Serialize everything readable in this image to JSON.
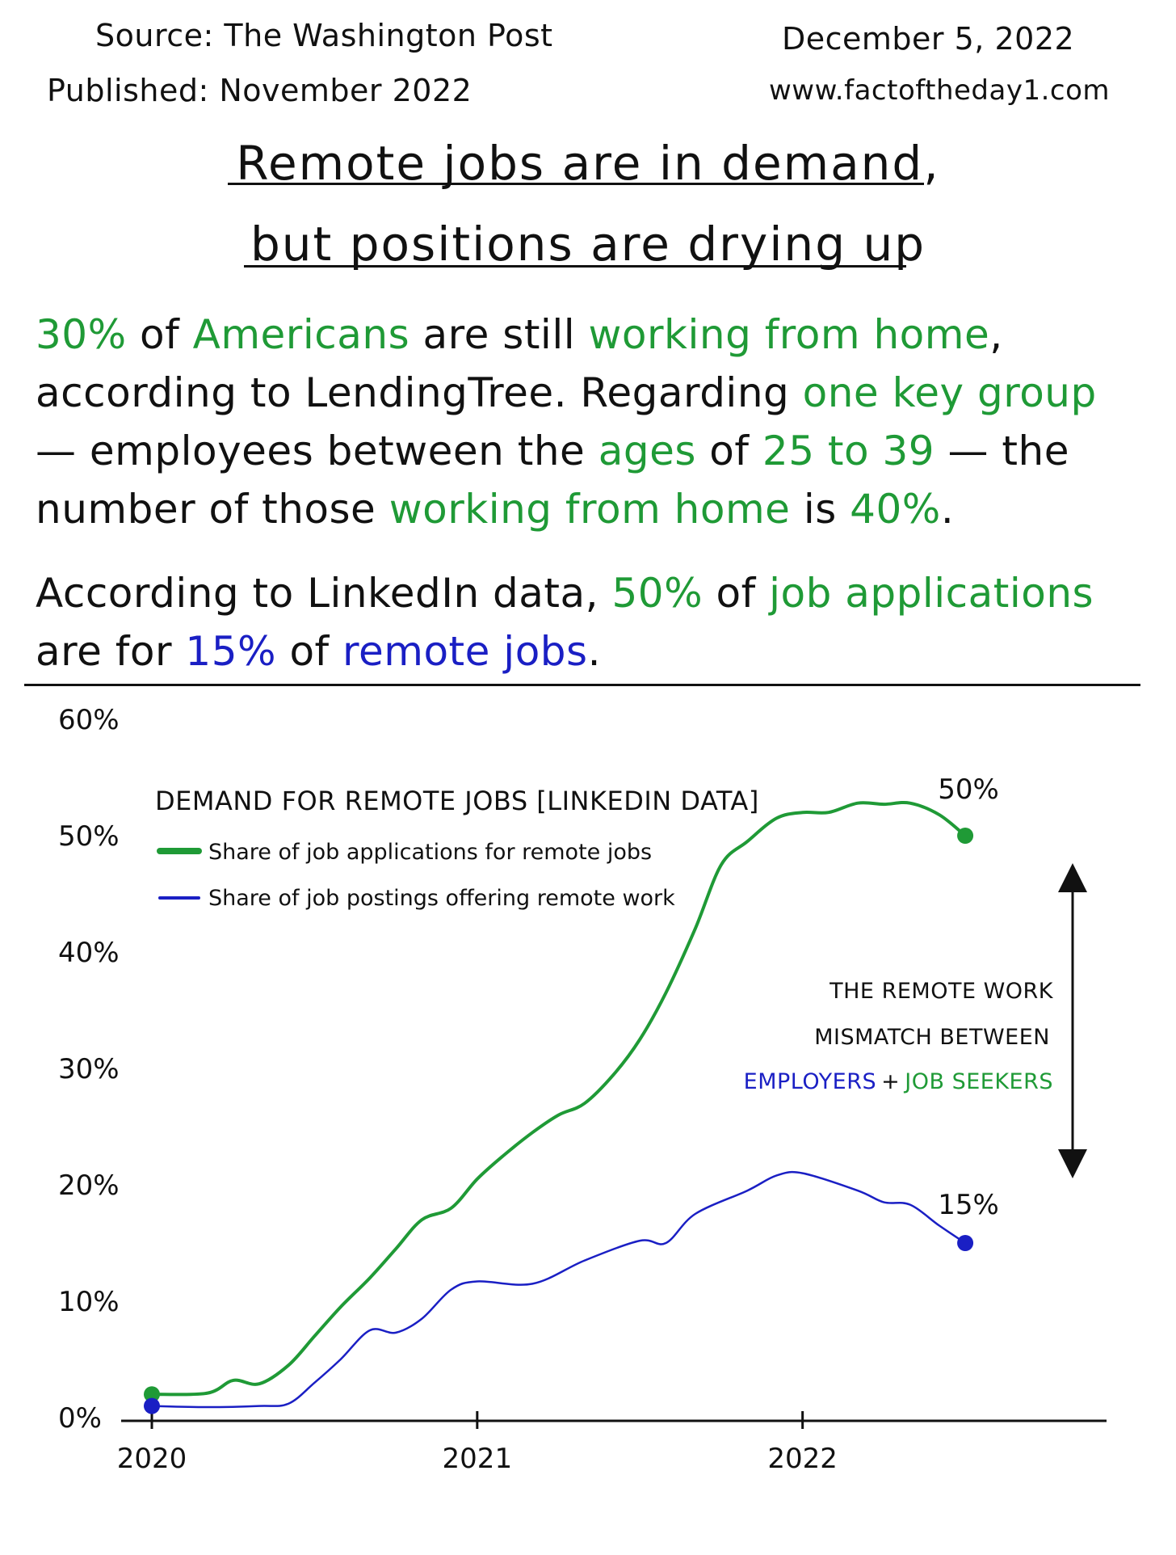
{
  "header": {
    "source": "Source: The Washington Post",
    "published": "Published: November 2022",
    "date": "December 5, 2022",
    "website": "www.factoftheday1.com"
  },
  "title": {
    "line1": "Remote jobs are in demand,",
    "line2": "but positions are drying up"
  },
  "paragraph1": [
    {
      "text": "30%",
      "color": "green"
    },
    {
      "text": " of ",
      "color": "black"
    },
    {
      "text": "Americans",
      "color": "green"
    },
    {
      "text": " are still ",
      "color": "black"
    },
    {
      "text": "working from home",
      "color": "green"
    },
    {
      "text": ", according to LendingTree. Regarding ",
      "color": "black"
    },
    {
      "text": "one key group",
      "color": "green"
    },
    {
      "text": " — employees between the ",
      "color": "black"
    },
    {
      "text": "ages",
      "color": "green"
    },
    {
      "text": " of ",
      "color": "black"
    },
    {
      "text": "25 to 39",
      "color": "green"
    },
    {
      "text": " — the number of those ",
      "color": "black"
    },
    {
      "text": "working from home",
      "color": "green"
    },
    {
      "text": " is ",
      "color": "black"
    },
    {
      "text": "40%",
      "color": "green"
    },
    {
      "text": ".",
      "color": "black"
    }
  ],
  "paragraph2": [
    {
      "text": "According to LinkedIn data, ",
      "color": "black"
    },
    {
      "text": "50%",
      "color": "green"
    },
    {
      "text": " of ",
      "color": "black"
    },
    {
      "text": "job applications",
      "color": "green"
    },
    {
      "text": " are for ",
      "color": "black"
    },
    {
      "text": "15%",
      "color": "blue"
    },
    {
      "text": " of ",
      "color": "black"
    },
    {
      "text": "remote jobs",
      "color": "blue"
    },
    {
      "text": ".",
      "color": "black"
    }
  ],
  "colors": {
    "green": "#1f9a36",
    "blue": "#1a1fc4",
    "black": "#111111"
  },
  "chart_data": {
    "type": "line",
    "title": "DEMAND FOR REMOTE JOBS [LINKEDIN DATA]",
    "xlabel": "",
    "ylabel": "",
    "x_ticks": [
      "2020",
      "2021",
      "2022"
    ],
    "y_ticks": [
      "0%",
      "10%",
      "20%",
      "30%",
      "40%",
      "50%",
      "60%"
    ],
    "ylim": [
      0,
      60
    ],
    "xlim": [
      2020.0,
      2022.83
    ],
    "legend_position": "top-left",
    "grid": false,
    "series": [
      {
        "name": "Share of job applications for remote jobs",
        "color": "#1f9a36",
        "points": [
          [
            2020.0,
            2.0
          ],
          [
            2020.17,
            2.1
          ],
          [
            2020.25,
            3.2
          ],
          [
            2020.33,
            2.9
          ],
          [
            2020.42,
            4.5
          ],
          [
            2020.5,
            7.0
          ],
          [
            2020.58,
            9.5
          ],
          [
            2020.67,
            12.0
          ],
          [
            2020.75,
            14.5
          ],
          [
            2020.83,
            17.0
          ],
          [
            2020.92,
            18.0
          ],
          [
            2021.0,
            20.5
          ],
          [
            2021.08,
            22.5
          ],
          [
            2021.17,
            24.5
          ],
          [
            2021.25,
            26.0
          ],
          [
            2021.33,
            27.0
          ],
          [
            2021.42,
            29.5
          ],
          [
            2021.5,
            32.5
          ],
          [
            2021.58,
            36.5
          ],
          [
            2021.67,
            42.0
          ],
          [
            2021.75,
            47.5
          ],
          [
            2021.83,
            49.5
          ],
          [
            2021.92,
            51.5
          ],
          [
            2022.0,
            52.0
          ],
          [
            2022.08,
            52.0
          ],
          [
            2022.17,
            52.8
          ],
          [
            2022.25,
            52.7
          ],
          [
            2022.33,
            52.8
          ],
          [
            2022.42,
            51.8
          ],
          [
            2022.5,
            50.0
          ]
        ],
        "end_label": "50%"
      },
      {
        "name": "Share of job postings offering remote work",
        "color": "#1a1fc4",
        "points": [
          [
            2020.0,
            1.0
          ],
          [
            2020.17,
            0.9
          ],
          [
            2020.33,
            1.0
          ],
          [
            2020.42,
            1.2
          ],
          [
            2020.5,
            3.0
          ],
          [
            2020.58,
            5.0
          ],
          [
            2020.67,
            7.5
          ],
          [
            2020.75,
            7.3
          ],
          [
            2020.83,
            8.5
          ],
          [
            2020.92,
            11.0
          ],
          [
            2021.0,
            11.7
          ],
          [
            2021.17,
            11.5
          ],
          [
            2021.33,
            13.5
          ],
          [
            2021.5,
            15.2
          ],
          [
            2021.58,
            15.0
          ],
          [
            2021.67,
            17.5
          ],
          [
            2021.83,
            19.5
          ],
          [
            2021.92,
            20.8
          ],
          [
            2022.0,
            21.0
          ],
          [
            2022.17,
            19.5
          ],
          [
            2022.25,
            18.5
          ],
          [
            2022.33,
            18.3
          ],
          [
            2022.42,
            16.5
          ],
          [
            2022.5,
            15.0
          ]
        ],
        "end_label": "15%"
      }
    ],
    "annotation": {
      "line1": "THE REMOTE WORK",
      "line2": "MISMATCH BETWEEN",
      "employers": "EMPLOYERS",
      "plus": "+",
      "job_seekers": "JOB SEEKERS"
    }
  }
}
